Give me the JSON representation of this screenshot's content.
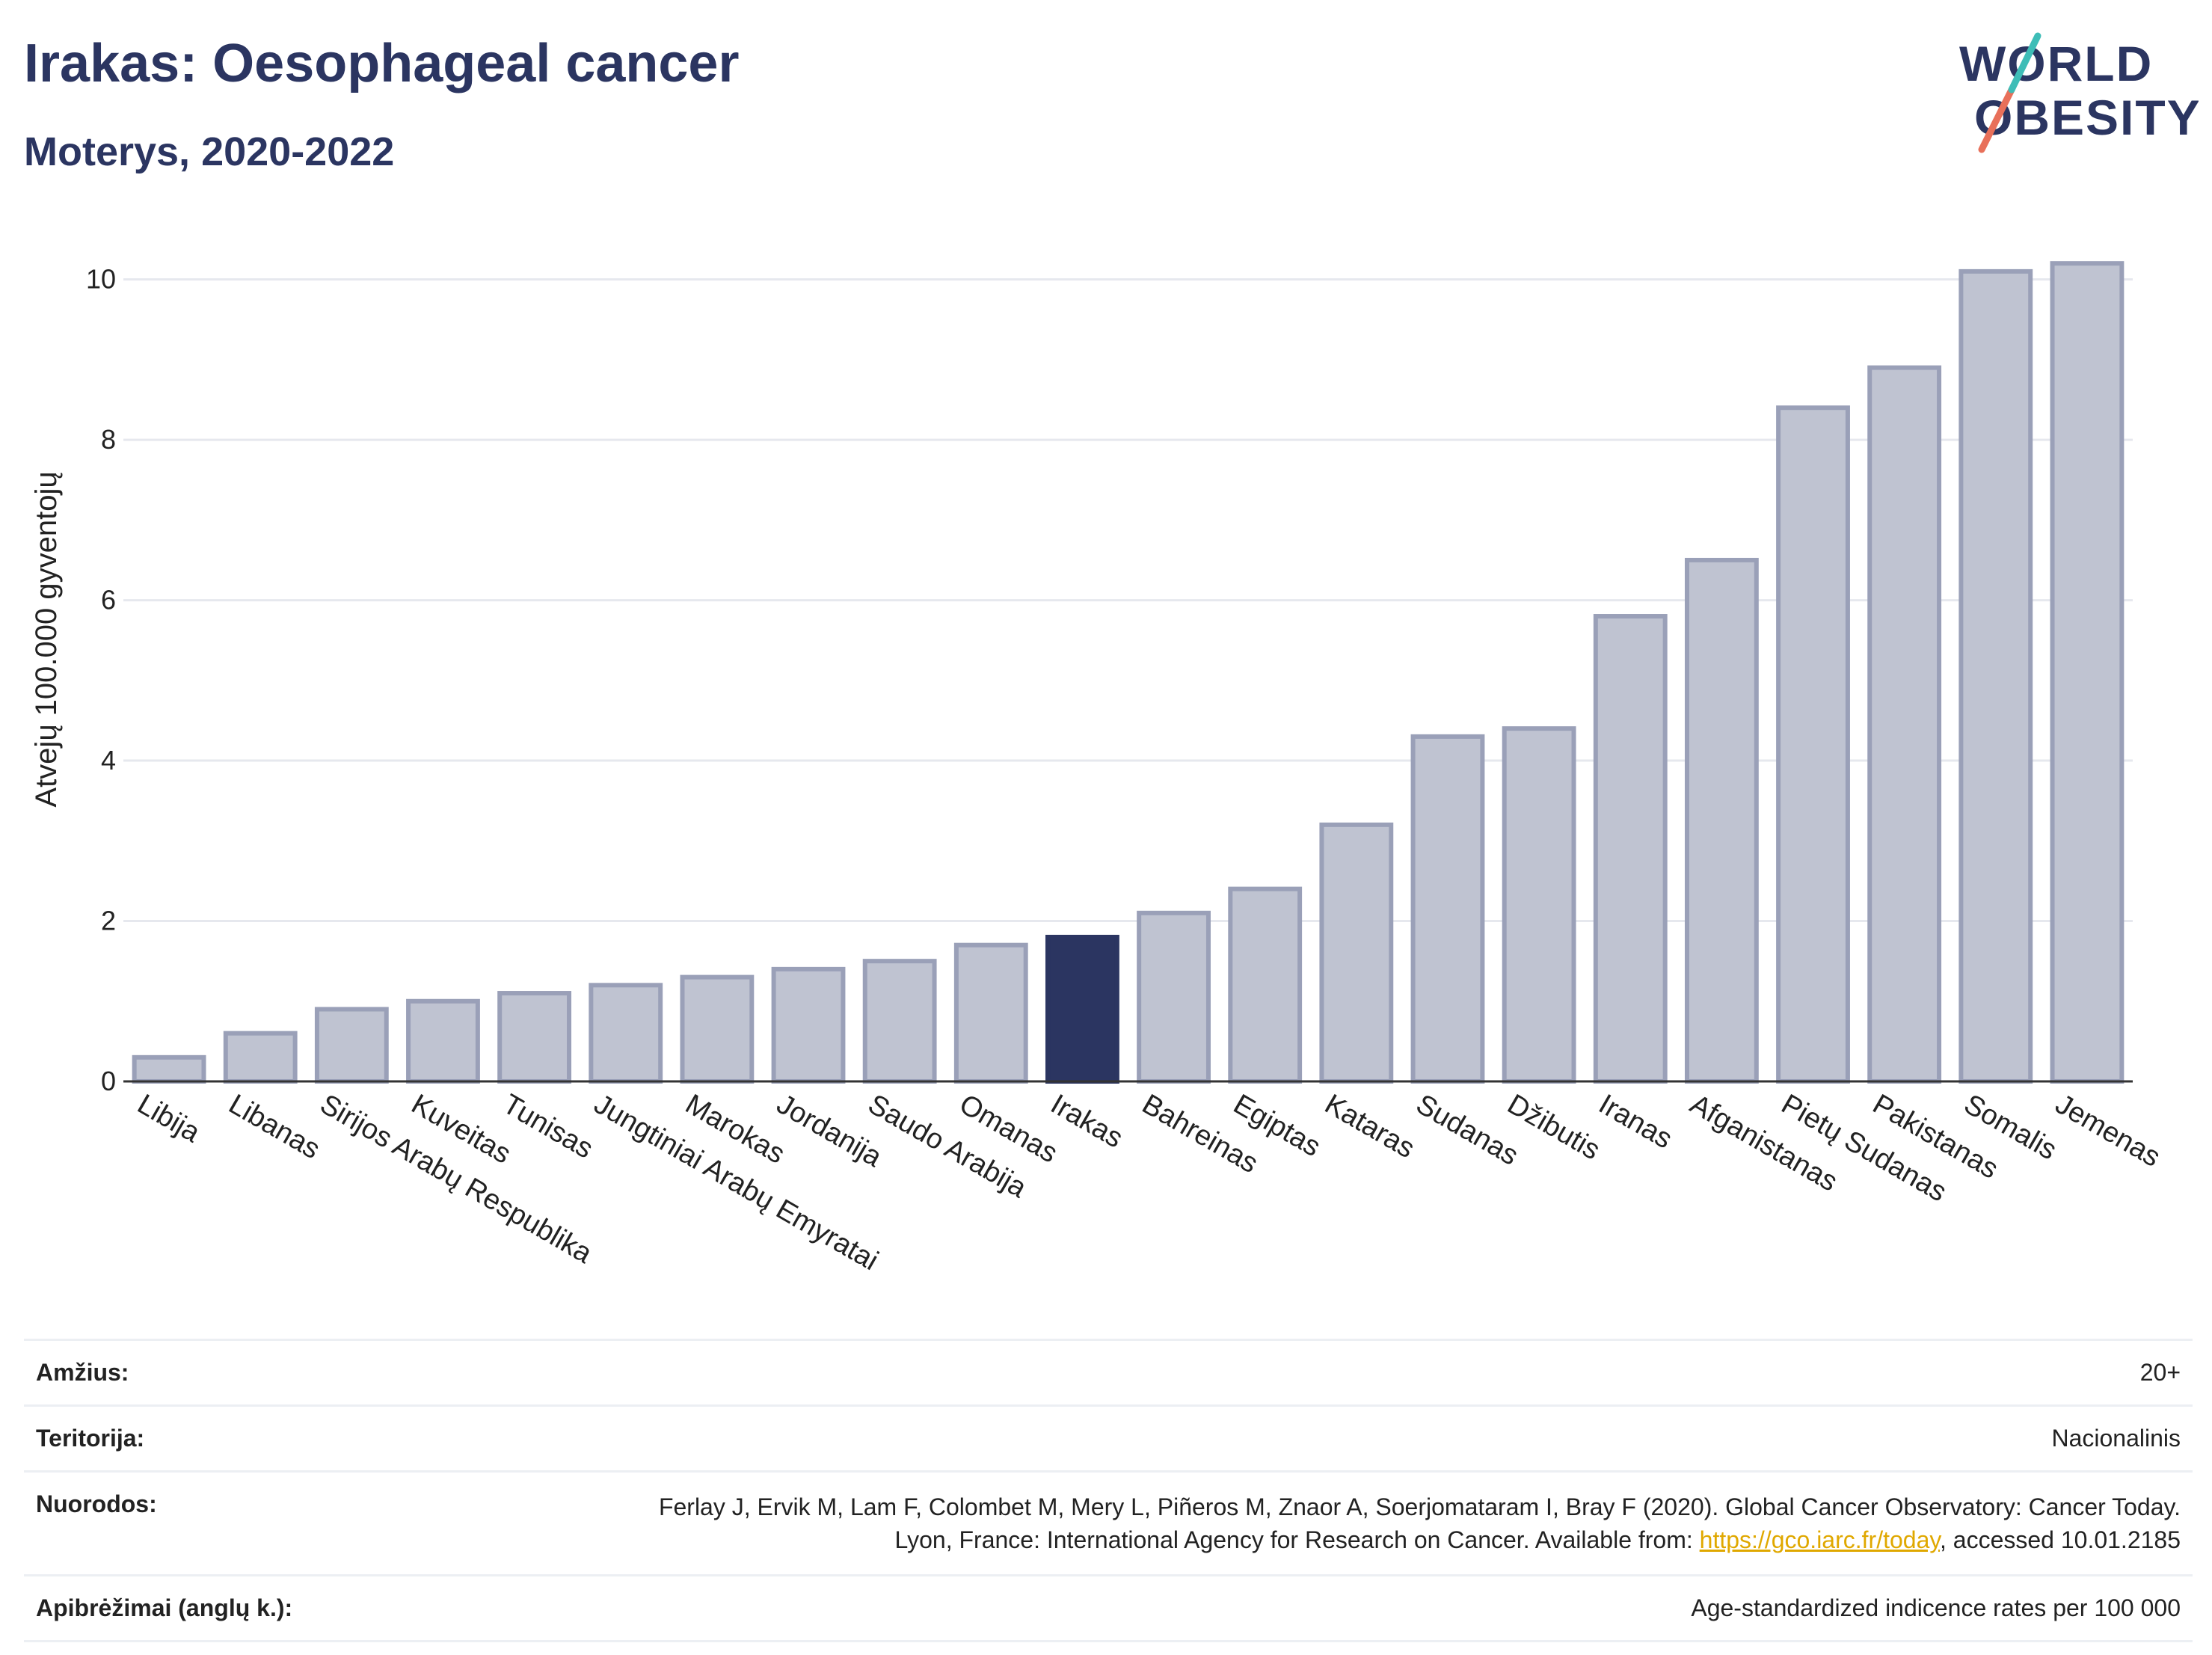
{
  "header": {
    "title": "Irakas: Oesophageal cancer",
    "subtitle": "Moterys, 2020-2022",
    "logo_line1": "WORLD",
    "logo_line2": "OBESITY"
  },
  "chart_data": {
    "type": "bar",
    "title": "Irakas: Oesophageal cancer",
    "subtitle": "Moterys, 2020-2022",
    "ylabel": "Atvejų 100.000 gyventojų",
    "xlabel": "",
    "ylim": [
      0,
      10.5
    ],
    "yticks": [
      0,
      2,
      4,
      6,
      8,
      10
    ],
    "grid": true,
    "highlight": "Irakas",
    "colors": {
      "bar": "#bfc3d1",
      "bar_edge": "#9aa0b8",
      "highlight": "#2b3561"
    },
    "categories": [
      "Libija",
      "Libanas",
      "Sirijos Arabų Respublika",
      "Kuveitas",
      "Tunisas",
      "Jungtiniai Arabų Emyratai",
      "Marokas",
      "Jordanija",
      "Saudo Arabija",
      "Omanas",
      "Irakas",
      "Bahreinas",
      "Egiptas",
      "Kataras",
      "Sudanas",
      "Džibutis",
      "Iranas",
      "Afganistanas",
      "Pietų Sudanas",
      "Pakistanas",
      "Somalis",
      "Jemenas"
    ],
    "values": [
      0.3,
      0.6,
      0.9,
      1.0,
      1.1,
      1.2,
      1.3,
      1.4,
      1.5,
      1.7,
      1.8,
      2.1,
      2.4,
      3.2,
      4.3,
      4.4,
      5.8,
      6.5,
      8.4,
      8.9,
      10.1,
      10.2
    ]
  },
  "info": {
    "age_label": "Amžius:",
    "age_value": "20+",
    "territory_label": "Teritorija:",
    "territory_value": "Nacionalinis",
    "refs_label": "Nuorodos:",
    "refs_text_1": "Ferlay J, Ervik M, Lam F, Colombet M, Mery L, Piñeros M, Znaor A, Soerjomataram I, Bray F (2020). Global Cancer Observatory: Cancer Today. Lyon, France: International Agency for Research on Cancer. Available from: ",
    "refs_link": "https://gco.iarc.fr/today",
    "refs_text_2": ", accessed 10.01.2185",
    "defs_label": "Apibrėžimai (anglų k.):",
    "defs_value": "Age-standardized indicence rates per 100 000"
  }
}
